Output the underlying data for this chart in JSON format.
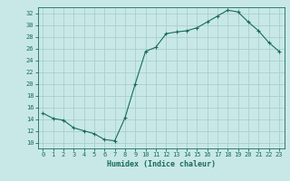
{
  "title": "",
  "xlabel": "Humidex (Indice chaleur)",
  "ylabel": "",
  "bg_color": "#c8e8e8",
  "grid_color": "#a8cece",
  "line_color": "#1a6b5a",
  "marker_color": "#1a6b5a",
  "xlim": [
    -0.5,
    23.5
  ],
  "ylim": [
    9.0,
    33.0
  ],
  "yticks": [
    10,
    12,
    14,
    16,
    18,
    20,
    22,
    24,
    26,
    28,
    30,
    32
  ],
  "xticks": [
    0,
    1,
    2,
    3,
    4,
    5,
    6,
    7,
    8,
    9,
    10,
    11,
    12,
    13,
    14,
    15,
    16,
    17,
    18,
    19,
    20,
    21,
    22,
    23
  ],
  "x": [
    0,
    1,
    2,
    3,
    4,
    5,
    6,
    7,
    8,
    9,
    10,
    11,
    12,
    13,
    14,
    15,
    16,
    17,
    18,
    19,
    20,
    21,
    22,
    23
  ],
  "y": [
    15.0,
    14.1,
    13.8,
    12.5,
    12.0,
    11.5,
    10.5,
    10.3,
    14.2,
    20.0,
    25.5,
    26.2,
    28.5,
    28.8,
    29.0,
    29.5,
    30.5,
    31.5,
    32.5,
    32.2,
    30.5,
    29.0,
    27.0,
    25.5
  ]
}
